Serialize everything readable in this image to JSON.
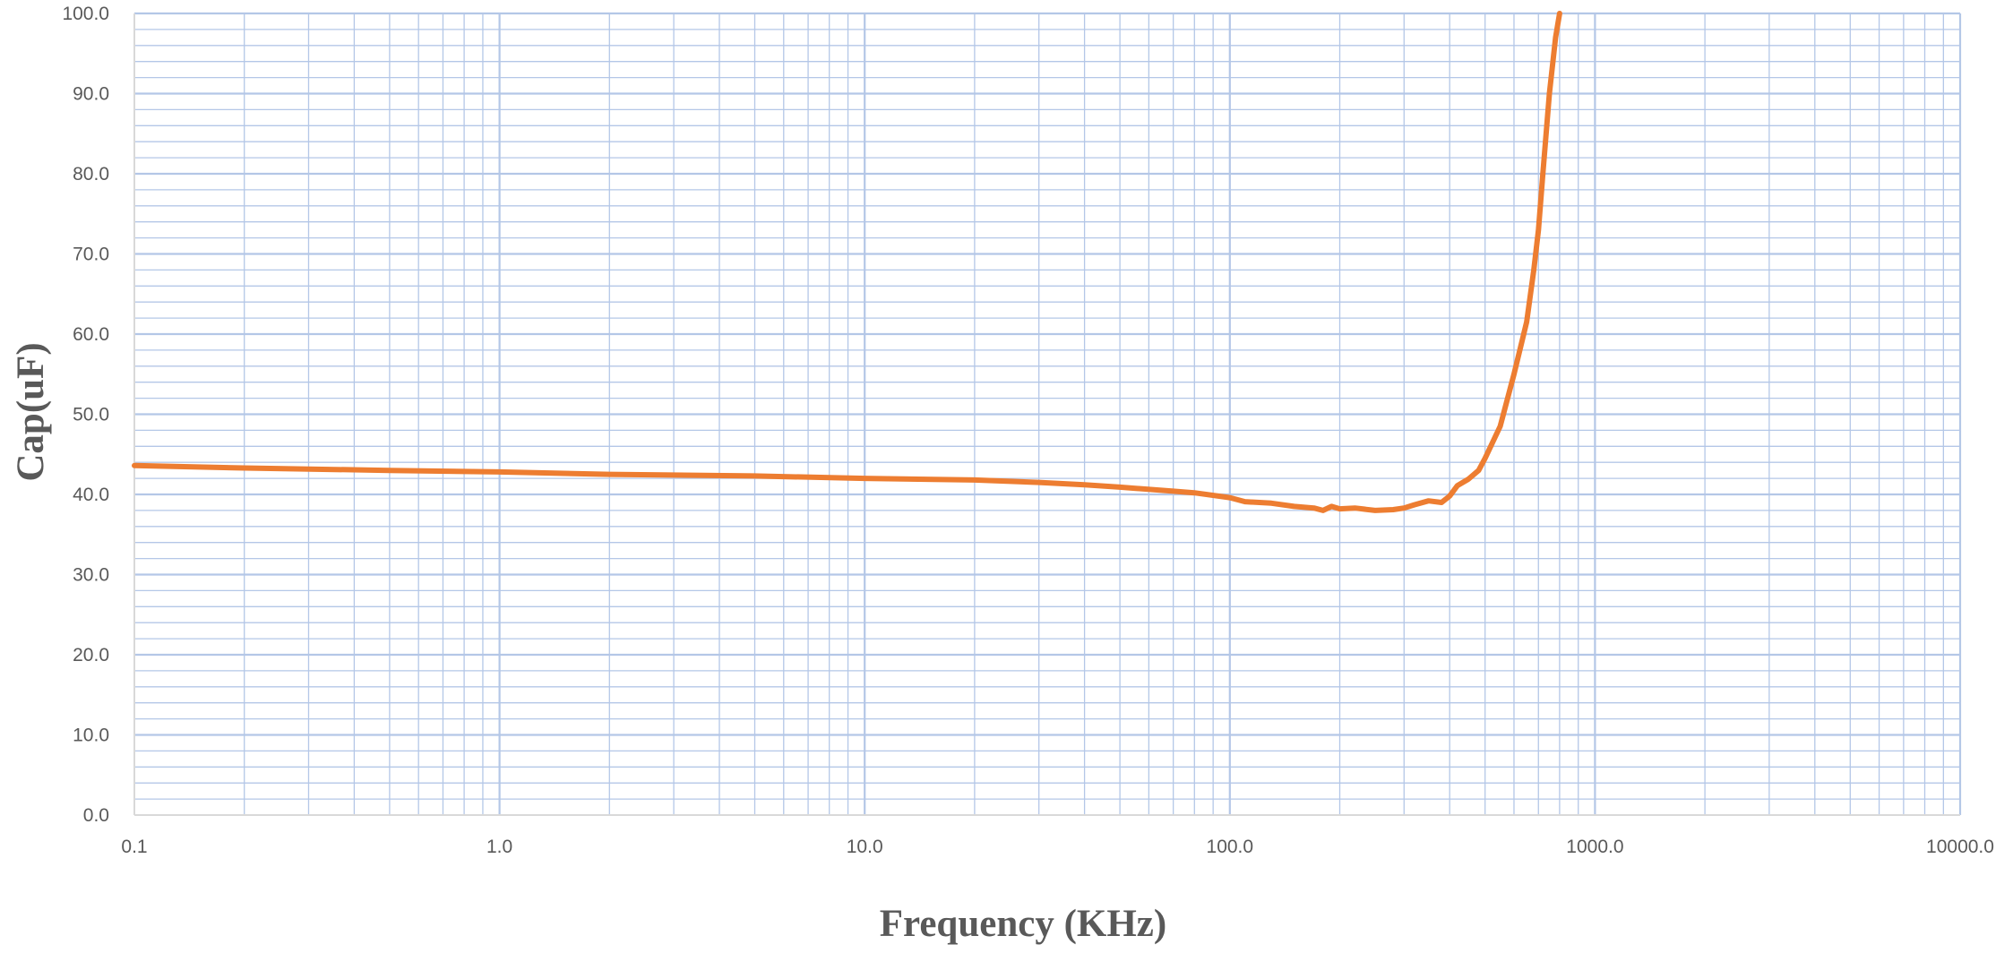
{
  "chart_data": {
    "type": "line",
    "title": "",
    "xlabel": "Frequency (KHz)",
    "ylabel": "Cap(uF)",
    "x_scale": "log",
    "xlim": [
      0.1,
      10000
    ],
    "ylim": [
      0,
      100
    ],
    "x_ticks": [
      "0.1",
      "1.0",
      "10.0",
      "100.0",
      "1000.0",
      "10000.0"
    ],
    "y_ticks": [
      "0.0",
      "10.0",
      "20.0",
      "30.0",
      "40.0",
      "50.0",
      "60.0",
      "70.0",
      "80.0",
      "90.0",
      "100.0"
    ],
    "grid": true,
    "legend": "none",
    "colors": {
      "line": "#ED7D31",
      "grid": "#B4C7E7",
      "axis": "#D9D9D9",
      "text": "#595959"
    },
    "series": [
      {
        "x": [
          0.1,
          0.2,
          0.5,
          1,
          2,
          5,
          10,
          20,
          30,
          40,
          50,
          70,
          80,
          100,
          110,
          130,
          150,
          170,
          180,
          190,
          200,
          220,
          250,
          280,
          300,
          320,
          350,
          380,
          400,
          420,
          450,
          480,
          500,
          550,
          600,
          650,
          680,
          700,
          720,
          750,
          780,
          800
        ],
        "y": [
          43.6,
          43.3,
          43.0,
          42.8,
          42.5,
          42.3,
          42.0,
          41.8,
          41.5,
          41.2,
          40.9,
          40.4,
          40.2,
          39.6,
          39.1,
          38.9,
          38.5,
          38.3,
          38.0,
          38.5,
          38.2,
          38.3,
          38.0,
          38.1,
          38.3,
          38.7,
          39.2,
          39.0,
          39.8,
          41.1,
          41.9,
          43.0,
          44.5,
          48.5,
          55.0,
          61.5,
          68.0,
          73.0,
          80.0,
          90.0,
          97.0,
          100.0
        ]
      }
    ]
  }
}
